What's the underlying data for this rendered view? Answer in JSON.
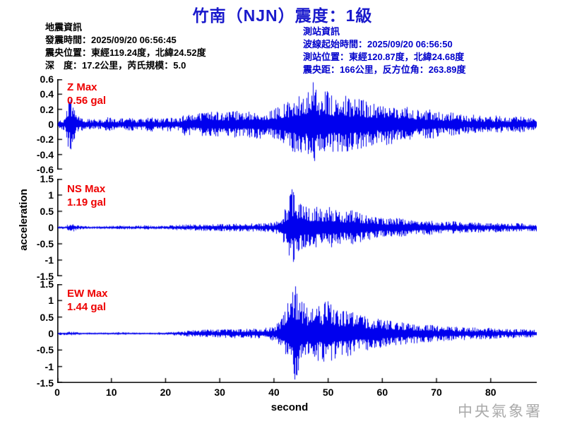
{
  "title": "竹南（NJN）震度：1級",
  "earthquake_info": {
    "heading": "地震資訊",
    "lines": [
      "發震時間：2025/09/20 06:56:45",
      "震央位置：東經119.24度，北緯24.52度",
      "深　度：17.2公里，芮氏規模：5.0"
    ]
  },
  "station_info": {
    "heading": "測站資訊",
    "lines": [
      "波線起始時間：2025/09/20 06:56:50",
      "測站位置：東經120.87度，北緯24.68度",
      "震央距：166公里，反方位角：263.89度"
    ]
  },
  "watermark": "中央氣象署",
  "colors": {
    "title_blue": "#1a1acc",
    "info_blue": "#0000cc",
    "trace_blue": "#0000ee",
    "max_red": "#ee0000",
    "axis_black": "#000000",
    "watermark_gray": "#aaaaaa"
  },
  "chart_data": {
    "type": "line",
    "kind": "seismogram-3-component",
    "xlabel": "second",
    "ylabel": "acceleration",
    "x_range": [
      0,
      88.5
    ],
    "x_ticks": [
      0,
      10,
      20,
      30,
      40,
      50,
      60,
      70,
      80
    ],
    "grid": false,
    "panels": [
      {
        "id": "Z",
        "max_label": "Z Max",
        "max_value_gal": 0.56,
        "max_value_label": "0.56 gal",
        "peak_time_s": 47.2,
        "ylim": [
          -0.6,
          0.6
        ],
        "y_ticks": [
          "0.6",
          "0.4",
          "0.2",
          "0",
          "-0.2",
          "-0.4",
          "-0.6"
        ],
        "seed": 7,
        "envelope_t_gal": [
          [
            0,
            0.06
          ],
          [
            1.3,
            0.08
          ],
          [
            1.8,
            0.3
          ],
          [
            2.6,
            0.35
          ],
          [
            3.4,
            0.12
          ],
          [
            5,
            0.07
          ],
          [
            8,
            0.07
          ],
          [
            9.5,
            0.1
          ],
          [
            11,
            0.07
          ],
          [
            13,
            0.09
          ],
          [
            15,
            0.07
          ],
          [
            17,
            0.1
          ],
          [
            19,
            0.08
          ],
          [
            21,
            0.1
          ],
          [
            22.5,
            0.09
          ],
          [
            23.5,
            0.16
          ],
          [
            25,
            0.13
          ],
          [
            27,
            0.16
          ],
          [
            29,
            0.18
          ],
          [
            31,
            0.16
          ],
          [
            33,
            0.18
          ],
          [
            35,
            0.17
          ],
          [
            37,
            0.2
          ],
          [
            39,
            0.18
          ],
          [
            41,
            0.24
          ],
          [
            42.5,
            0.3
          ],
          [
            44,
            0.4
          ],
          [
            45.5,
            0.36
          ],
          [
            46.5,
            0.48
          ],
          [
            47.2,
            0.56
          ],
          [
            48,
            0.4
          ],
          [
            49.5,
            0.46
          ],
          [
            51,
            0.36
          ],
          [
            52.5,
            0.42
          ],
          [
            54,
            0.33
          ],
          [
            55.5,
            0.38
          ],
          [
            57,
            0.3
          ],
          [
            59,
            0.26
          ],
          [
            61,
            0.28
          ],
          [
            63,
            0.22
          ],
          [
            65,
            0.24
          ],
          [
            67,
            0.18
          ],
          [
            69,
            0.2
          ],
          [
            71,
            0.15
          ],
          [
            73,
            0.16
          ],
          [
            75,
            0.12
          ],
          [
            77,
            0.13
          ],
          [
            79,
            0.11
          ],
          [
            81,
            0.12
          ],
          [
            83,
            0.1
          ],
          [
            85,
            0.11
          ],
          [
            87,
            0.09
          ],
          [
            88.5,
            0.09
          ]
        ]
      },
      {
        "id": "NS",
        "max_label": "NS Max",
        "max_value_gal": 1.19,
        "max_value_label": "1.19 gal",
        "peak_time_s": 43.3,
        "ylim": [
          -1.5,
          1.5
        ],
        "y_ticks": [
          "1.5",
          "1",
          "0.5",
          "0",
          "-0.5",
          "-1",
          "-1.5"
        ],
        "seed": 13,
        "envelope_t_gal": [
          [
            0,
            0.04
          ],
          [
            1.6,
            0.05
          ],
          [
            2.1,
            0.12
          ],
          [
            3,
            0.13
          ],
          [
            3.8,
            0.06
          ],
          [
            6,
            0.04
          ],
          [
            9,
            0.05
          ],
          [
            12,
            0.06
          ],
          [
            14,
            0.05
          ],
          [
            16,
            0.07
          ],
          [
            18,
            0.05
          ],
          [
            20,
            0.06
          ],
          [
            22,
            0.08
          ],
          [
            24,
            0.1
          ],
          [
            26,
            0.09
          ],
          [
            28,
            0.11
          ],
          [
            30,
            0.11
          ],
          [
            32,
            0.12
          ],
          [
            34,
            0.12
          ],
          [
            36,
            0.13
          ],
          [
            38,
            0.13
          ],
          [
            40,
            0.16
          ],
          [
            41.3,
            0.3
          ],
          [
            42.3,
            0.7
          ],
          [
            43.3,
            1.19
          ],
          [
            44.3,
            0.85
          ],
          [
            45.3,
            0.7
          ],
          [
            46.5,
            0.6
          ],
          [
            47.5,
            0.68
          ],
          [
            49,
            0.58
          ],
          [
            50.3,
            0.68
          ],
          [
            51.5,
            0.55
          ],
          [
            53,
            0.5
          ],
          [
            54.5,
            0.58
          ],
          [
            56,
            0.45
          ],
          [
            57.5,
            0.38
          ],
          [
            59,
            0.33
          ],
          [
            61,
            0.28
          ],
          [
            63,
            0.32
          ],
          [
            65,
            0.24
          ],
          [
            67,
            0.21
          ],
          [
            69,
            0.24
          ],
          [
            71,
            0.18
          ],
          [
            73,
            0.2
          ],
          [
            75,
            0.15
          ],
          [
            77,
            0.17
          ],
          [
            79,
            0.13
          ],
          [
            81,
            0.15
          ],
          [
            83,
            0.12
          ],
          [
            85,
            0.14
          ],
          [
            87,
            0.11
          ],
          [
            88.5,
            0.12
          ]
        ]
      },
      {
        "id": "EW",
        "max_label": "EW Max",
        "max_value_gal": 1.44,
        "max_value_label": "1.44 gal",
        "peak_time_s": 43.9,
        "ylim": [
          -1.5,
          1.5
        ],
        "y_ticks": [
          "1.5",
          "1",
          "0.5",
          "0",
          "-0.5",
          "-1",
          "-1.5"
        ],
        "seed": 29,
        "envelope_t_gal": [
          [
            0,
            0.04
          ],
          [
            2,
            0.06
          ],
          [
            3.2,
            0.05
          ],
          [
            5,
            0.03
          ],
          [
            8,
            0.03
          ],
          [
            11,
            0.04
          ],
          [
            14,
            0.03
          ],
          [
            17,
            0.03
          ],
          [
            20,
            0.04
          ],
          [
            22,
            0.06
          ],
          [
            24,
            0.09
          ],
          [
            26,
            0.11
          ],
          [
            28,
            0.12
          ],
          [
            30,
            0.13
          ],
          [
            32,
            0.14
          ],
          [
            34,
            0.14
          ],
          [
            36,
            0.15
          ],
          [
            38,
            0.17
          ],
          [
            40,
            0.22
          ],
          [
            41.2,
            0.45
          ],
          [
            42.2,
            0.85
          ],
          [
            43.2,
            1.2
          ],
          [
            43.9,
            1.44
          ],
          [
            44.8,
            1.1
          ],
          [
            46,
            0.8
          ],
          [
            47.2,
            0.95
          ],
          [
            48.5,
            0.8
          ],
          [
            49.8,
            1.05
          ],
          [
            51,
            0.8
          ],
          [
            52.3,
            0.7
          ],
          [
            53.5,
            0.75
          ],
          [
            55,
            0.6
          ],
          [
            56.5,
            0.55
          ],
          [
            58,
            0.48
          ],
          [
            60,
            0.42
          ],
          [
            62,
            0.38
          ],
          [
            64,
            0.33
          ],
          [
            66,
            0.3
          ],
          [
            68,
            0.27
          ],
          [
            70,
            0.24
          ],
          [
            72,
            0.22
          ],
          [
            74,
            0.21
          ],
          [
            76,
            0.19
          ],
          [
            78,
            0.18
          ],
          [
            80,
            0.17
          ],
          [
            82,
            0.15
          ],
          [
            84,
            0.14
          ],
          [
            86,
            0.13
          ],
          [
            88.5,
            0.12
          ]
        ]
      }
    ]
  }
}
